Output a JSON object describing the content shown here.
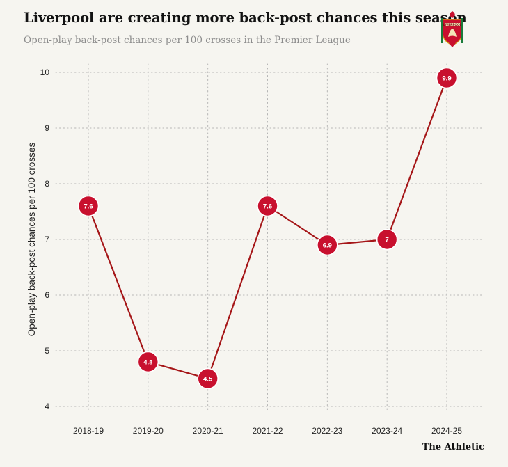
{
  "header": {
    "title": "Liverpool are creating more back-post chances this season",
    "subtitle": "Open-play back-post chances per 100 crosses in the Premier League"
  },
  "crest": {
    "text": "LIVERPOOL",
    "icon": "liverpool-crest-icon"
  },
  "source": "The Athletic",
  "colors": {
    "background": "#f6f5f0",
    "line": "#a51618",
    "marker": "#c8102e",
    "grid": "#b5b5b5"
  },
  "chart_data": {
    "type": "line",
    "title": "Liverpool are creating more back-post chances this season",
    "subtitle": "Open-play back-post chances per 100 crosses in the Premier League",
    "xlabel": "",
    "ylabel": "Open-play back-post chances per 100 crosses",
    "categories": [
      "2018-19",
      "2019-20",
      "2020-21",
      "2021-22",
      "2022-23",
      "2023-24",
      "2024-25"
    ],
    "series": [
      {
        "name": "Liverpool",
        "values": [
          7.6,
          4.8,
          4.5,
          7.6,
          6.9,
          7,
          9.9
        ]
      }
    ],
    "data_labels": [
      "7.6",
      "4.8",
      "4.5",
      "7.6",
      "6.9",
      "7",
      "9.9"
    ],
    "yticks": [
      4,
      5,
      6,
      7,
      8,
      9,
      10
    ],
    "ylim": [
      4,
      10
    ],
    "grid": true,
    "legend": "none"
  }
}
